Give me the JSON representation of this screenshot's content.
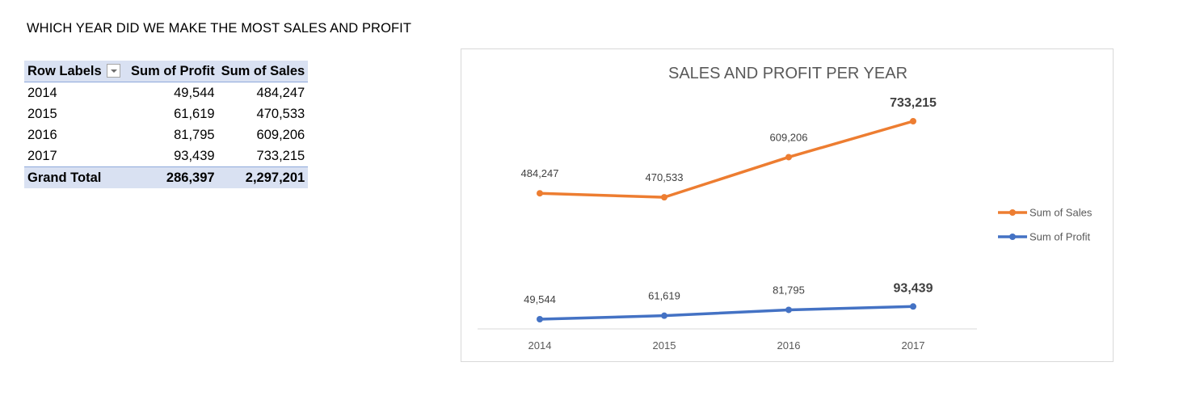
{
  "heading": "WHICH YEAR DID WE MAKE THE MOST SALES AND PROFIT",
  "pivot": {
    "headers": {
      "row_labels": "Row Labels",
      "profit": "Sum of Profit",
      "sales": "Sum of Sales"
    },
    "rows": [
      {
        "label": "2014",
        "profit": "49,544",
        "sales": "484,247"
      },
      {
        "label": "2015",
        "profit": "61,619",
        "sales": "470,533"
      },
      {
        "label": "2016",
        "profit": "81,795",
        "sales": "609,206"
      },
      {
        "label": "2017",
        "profit": "93,439",
        "sales": "733,215"
      }
    ],
    "total": {
      "label": "Grand Total",
      "profit": "286,397",
      "sales": "2,297,201"
    }
  },
  "chart_data": {
    "type": "line",
    "title": "SALES AND PROFIT PER YEAR",
    "categories": [
      "2014",
      "2015",
      "2016",
      "2017"
    ],
    "series": [
      {
        "name": "Sum of Sales",
        "color": "#ed7d31",
        "values": [
          484247,
          470533,
          609206,
          733215
        ],
        "labels": [
          "484,247",
          "470,533",
          "609,206",
          "733,215"
        ]
      },
      {
        "name": "Sum of Profit",
        "color": "#4472c4",
        "values": [
          49544,
          61619,
          81795,
          93439
        ],
        "labels": [
          "49,544",
          "61,619",
          "81,795",
          "93,439"
        ]
      }
    ],
    "legend": "right",
    "grid": false
  }
}
